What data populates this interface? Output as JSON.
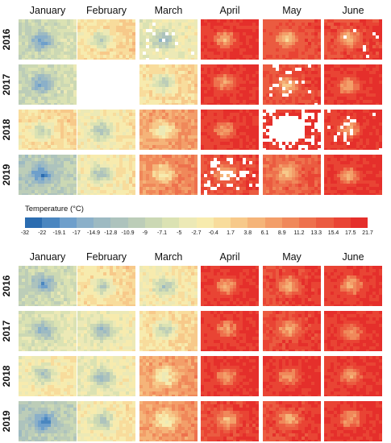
{
  "chart_data": [
    {
      "type": "heatmap",
      "panel": "top",
      "columns": [
        "January",
        "February",
        "March",
        "April",
        "May",
        "June"
      ],
      "rows": [
        "2016",
        "2017",
        "2018",
        "2019"
      ],
      "warmth": [
        [
          0.35,
          0.55,
          0.45,
          0.95,
          0.88,
          0.92
        ],
        [
          0.35,
          null,
          0.55,
          0.95,
          0.9,
          0.95
        ],
        [
          0.55,
          0.5,
          0.7,
          0.95,
          0.95,
          0.95
        ],
        [
          0.28,
          0.5,
          0.75,
          0.9,
          0.85,
          0.95
        ]
      ],
      "missing_fraction": [
        [
          0.0,
          0.0,
          0.05,
          0.0,
          0.0,
          0.02
        ],
        [
          0.0,
          1.0,
          0.0,
          0.0,
          0.12,
          0.0
        ],
        [
          0.0,
          0.0,
          0.0,
          0.0,
          0.65,
          0.08
        ],
        [
          0.0,
          0.0,
          0.0,
          0.25,
          0.0,
          0.0
        ]
      ]
    },
    {
      "type": "heatmap",
      "panel": "bottom",
      "columns": [
        "January",
        "February",
        "March",
        "April",
        "May",
        "June"
      ],
      "rows": [
        "2016",
        "2017",
        "2018",
        "2019"
      ],
      "warmth": [
        [
          0.35,
          0.55,
          0.5,
          0.95,
          0.92,
          0.93
        ],
        [
          0.4,
          0.45,
          0.55,
          0.95,
          0.92,
          0.95
        ],
        [
          0.5,
          0.45,
          0.7,
          0.95,
          0.95,
          0.95
        ],
        [
          0.28,
          0.5,
          0.72,
          0.92,
          0.92,
          0.95
        ]
      ]
    }
  ],
  "legend": {
    "title": "Temperature (°C)",
    "ticks": [
      "-32",
      "-22",
      "-19.1",
      "-17",
      "-14.9",
      "-12.8",
      "-10.9",
      "-9",
      "-7.1",
      "-5",
      "-2.7",
      "-0.4",
      "1.7",
      "3.8",
      "6.1",
      "8.9",
      "11.2",
      "13.3",
      "15.4",
      "17.5",
      "21.7"
    ],
    "colors": [
      "#2b6cb0",
      "#4a86c0",
      "#6e9fcb",
      "#8bb0c9",
      "#9dbac2",
      "#adc3bd",
      "#bccdb8",
      "#cbd8b4",
      "#dbe2b3",
      "#ece9b6",
      "#f7ebae",
      "#f8dc9c",
      "#f7c98a",
      "#f5b479",
      "#f39e69",
      "#f0885a",
      "#ee714d",
      "#eb5b40",
      "#e94434",
      "#e52f2b"
    ]
  }
}
